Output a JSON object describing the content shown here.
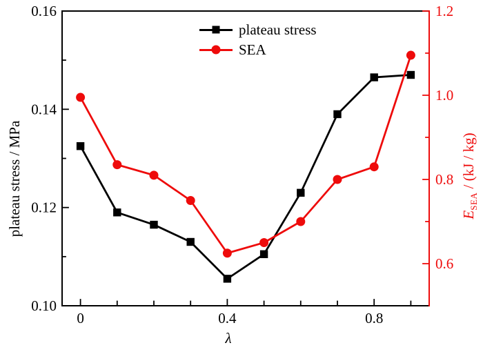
{
  "figure": {
    "background": "#ffffff",
    "series_black": "#000000",
    "series_red": "#ee0b0b",
    "legend": {
      "items": [
        {
          "label": "plateau stress",
          "color": "#000000",
          "marker": "square"
        },
        {
          "label": "SEA",
          "color": "#ee0b0b",
          "marker": "circle"
        }
      ]
    }
  },
  "chart_data": {
    "type": "line",
    "title": "",
    "x": [
      0,
      0.1,
      0.2,
      0.3,
      0.4,
      0.5,
      0.6,
      0.7,
      0.8,
      0.9
    ],
    "series": [
      {
        "name": "plateau stress",
        "axis": "left",
        "color": "#000000",
        "marker": "square",
        "values": [
          0.1325,
          0.119,
          0.1165,
          0.113,
          0.1055,
          0.1105,
          0.123,
          0.139,
          0.1465,
          0.147
        ]
      },
      {
        "name": "SEA",
        "axis": "right",
        "color": "#ee0b0b",
        "marker": "circle",
        "values": [
          0.995,
          0.835,
          0.81,
          0.75,
          0.625,
          0.65,
          0.7,
          0.8,
          0.83,
          1.095
        ]
      }
    ],
    "x_axis": {
      "title": "λ",
      "lim": [
        -0.05,
        0.95
      ],
      "ticks": [
        0,
        0.1,
        0.2,
        0.3,
        0.4,
        0.5,
        0.6,
        0.7,
        0.8,
        0.9
      ],
      "labeled_ticks": [
        {
          "value": 0,
          "label": "0"
        },
        {
          "value": 0.4,
          "label": "0.4"
        },
        {
          "value": 0.8,
          "label": "0.8"
        }
      ]
    },
    "left_axis": {
      "title": "plateau stress / MPa",
      "color": "#000000",
      "lim": [
        0.1,
        0.16
      ],
      "major_ticks": [
        {
          "value": 0.1,
          "label": "0.10"
        },
        {
          "value": 0.12,
          "label": "0.12"
        },
        {
          "value": 0.14,
          "label": "0.14"
        },
        {
          "value": 0.16,
          "label": "0.16"
        }
      ],
      "minor_ticks": [
        0.11,
        0.13,
        0.15
      ]
    },
    "right_axis": {
      "title_e": "E",
      "title_sub": "SEA",
      "title_rest": " / (kJ / kg)",
      "color": "#ee0b0b",
      "lim": [
        0.5,
        1.2
      ],
      "major_ticks": [
        {
          "value": 0.6,
          "label": "0.6"
        },
        {
          "value": 0.8,
          "label": "0.8"
        },
        {
          "value": 1.0,
          "label": "1.0"
        },
        {
          "value": 1.2,
          "label": "1.2"
        }
      ],
      "minor_ticks": [
        0.7,
        0.9,
        1.1
      ]
    },
    "grid": false,
    "legend_position": "inside-top-center"
  }
}
